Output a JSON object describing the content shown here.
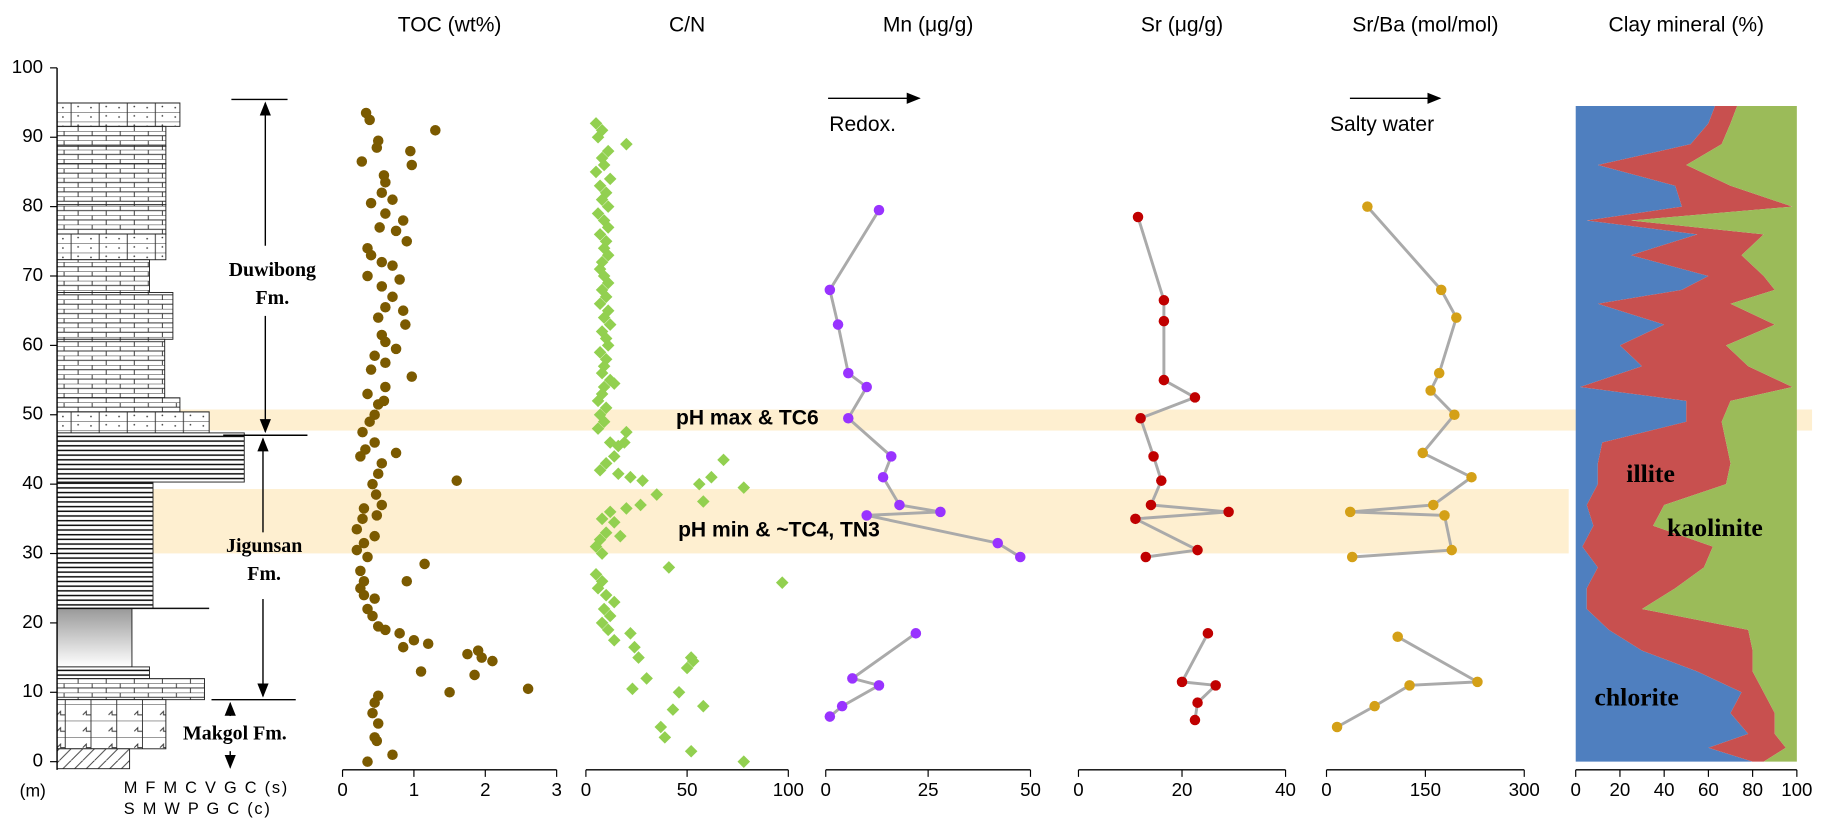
{
  "depth_axis": {
    "label": "(m)",
    "ylim": [
      0,
      100
    ],
    "yticks": [
      0,
      10,
      20,
      30,
      40,
      50,
      60,
      70,
      80,
      90,
      100
    ]
  },
  "lithology_scale": [
    "M F M C V G C (s)",
    "S M W P G C (c)"
  ],
  "formations": [
    {
      "lines": [
        "Duwibong",
        "Fm."
      ]
    },
    {
      "lines": [
        "Jigunsan",
        "Fm."
      ]
    },
    {
      "lines": [
        "Makgol Fm."
      ]
    }
  ],
  "highlight_bands": [
    {
      "label": "pH max & TC6"
    },
    {
      "label": "pH min & ~TC4, TN3"
    }
  ],
  "chart_data": [
    {
      "type": "scatter",
      "title": "TOC (wt%)",
      "marker": "circle",
      "color": "#7b5a00",
      "xlim": [
        0,
        3
      ],
      "xticks": [
        0,
        1,
        2,
        3
      ],
      "values": [
        0.33,
        0.38,
        1.3,
        0.5,
        0.48,
        0.95,
        0.27,
        0.97,
        0.58,
        0.6,
        0.55,
        0.4,
        0.7,
        0.6,
        0.85,
        0.52,
        0.75,
        0.9,
        0.35,
        0.4,
        0.55,
        0.7,
        0.35,
        0.8,
        0.55,
        0.7,
        0.6,
        0.85,
        0.5,
        0.88,
        0.55,
        0.6,
        0.75,
        0.45,
        0.6,
        0.4,
        0.97,
        0.6,
        0.35,
        0.5,
        0.58,
        0.45,
        0.38,
        0.28,
        0.45,
        0.32,
        0.75,
        0.25,
        0.55,
        0.5,
        1.6,
        0.42,
        0.47,
        0.55,
        0.3,
        0.48,
        0.28,
        0.2,
        0.45,
        0.3,
        0.2,
        0.35,
        1.15,
        0.25,
        0.3,
        0.9,
        0.25,
        0.3,
        0.45,
        0.35,
        0.42,
        0.5,
        0.6,
        0.8,
        1.0,
        0.85,
        1.2,
        1.75,
        1.9,
        1.95,
        2.1,
        1.1,
        1.85,
        2.6,
        1.5,
        0.5,
        0.45,
        0.42,
        0.5,
        0.45,
        0.48,
        0.7,
        0.35
      ],
      "depth": [
        93.5,
        92.5,
        91,
        89.5,
        88.5,
        88,
        86.5,
        86,
        84.5,
        83.5,
        82,
        80.5,
        81,
        79,
        78,
        77,
        76.5,
        75,
        74,
        73,
        72,
        71.5,
        70,
        69.5,
        68.5,
        67,
        65.5,
        65,
        64,
        63,
        61.5,
        60.5,
        59.5,
        58.5,
        57.5,
        56.5,
        55.5,
        54,
        53,
        51.5,
        52,
        50,
        49,
        47.5,
        46,
        45,
        44.5,
        44,
        43,
        41.5,
        40.5,
        40,
        38.5,
        37,
        36.5,
        35.5,
        35,
        33.5,
        32.5,
        31.5,
        30.5,
        29.5,
        28.5,
        27.5,
        26,
        26,
        25,
        24,
        23.5,
        22,
        21,
        19.5,
        19,
        18.5,
        17.5,
        16.5,
        17,
        15.5,
        16,
        15,
        14.5,
        13,
        12.5,
        10.5,
        10,
        9.5,
        8.5,
        7,
        5.5,
        3.5,
        3,
        1,
        0
      ]
    },
    {
      "type": "scatter",
      "title": "C/N",
      "marker": "diamond",
      "color": "#92d050",
      "xlim": [
        0,
        100
      ],
      "xticks": [
        0,
        50,
        100
      ],
      "values": [
        5,
        8,
        6,
        20,
        11,
        8,
        9,
        5,
        12,
        7,
        10,
        8,
        11,
        6,
        9,
        11,
        7,
        10,
        9,
        11,
        8,
        7,
        9,
        11,
        8,
        10,
        7,
        11,
        9,
        12,
        8,
        10,
        11,
        7,
        10,
        9,
        8,
        12,
        9,
        14,
        8,
        6,
        10,
        7,
        9,
        6,
        20,
        12,
        16,
        19,
        14,
        10,
        7,
        16,
        28,
        22,
        78,
        56,
        68,
        62,
        35,
        58,
        27,
        20,
        12,
        8,
        14,
        10,
        7,
        17,
        5,
        8,
        41,
        97,
        5,
        8,
        6,
        10,
        14,
        9,
        12,
        8,
        11,
        22,
        14,
        24,
        26,
        52,
        50,
        53,
        30,
        23,
        46,
        58,
        43,
        37,
        39,
        52,
        78
      ],
      "depth": [
        92,
        91,
        90,
        89,
        88,
        87,
        86,
        85,
        84,
        83,
        82,
        81,
        80,
        79,
        78,
        77,
        76,
        75,
        74,
        73,
        72,
        71,
        70,
        69,
        68,
        67,
        66,
        65,
        64,
        63,
        62,
        61,
        60,
        59,
        58,
        57,
        56,
        55,
        54,
        54.5,
        53,
        52,
        51,
        50,
        49,
        48,
        47.5,
        46,
        45.5,
        46,
        44,
        43,
        42,
        41.5,
        40.5,
        41,
        39.5,
        40,
        43.5,
        41,
        38.5,
        37.5,
        37,
        36.5,
        36,
        35,
        34.5,
        33,
        32,
        32.5,
        31,
        30,
        28,
        25.8,
        27,
        26,
        25,
        24,
        23,
        22,
        21,
        20,
        19,
        18.5,
        17.5,
        16.5,
        15,
        15,
        13.5,
        14.5,
        12,
        10.5,
        10,
        8,
        7.5,
        5,
        3.5,
        1.5,
        0
      ]
    },
    {
      "type": "line",
      "title": "Mn (μg/g)",
      "annotation": "Redox.",
      "color": "#9933ff",
      "line_color": "#aaaaaa",
      "xlim": [
        0,
        50
      ],
      "xticks": [
        0,
        25,
        50
      ],
      "values": [
        13,
        1,
        3,
        5.5,
        10,
        5.5,
        16,
        14,
        18,
        28,
        10,
        42,
        47.5,
        null,
        22,
        6.5,
        13,
        4,
        1
      ],
      "depth": [
        79.5,
        68,
        63,
        56,
        54,
        49.5,
        44,
        41,
        37,
        36,
        35.5,
        31.5,
        29.5,
        null,
        18.5,
        12,
        11,
        8,
        6.5
      ]
    },
    {
      "type": "line",
      "title": "Sr (μg/g)",
      "color": "#c00000",
      "line_color": "#aaaaaa",
      "xlim": [
        0,
        40
      ],
      "xticks": [
        0,
        20,
        40
      ],
      "values": [
        11.5,
        16.5,
        16.5,
        16.5,
        22.5,
        12,
        14.5,
        16,
        14,
        29,
        11,
        23,
        13,
        null,
        25,
        20,
        26.5,
        23,
        22.5
      ],
      "depth": [
        78.5,
        66.5,
        63.5,
        55,
        52.5,
        49.5,
        44,
        40.5,
        37,
        36,
        35,
        30.5,
        29.5,
        null,
        18.5,
        11.5,
        11,
        8.5,
        6
      ]
    },
    {
      "type": "line",
      "title": "Sr/Ba (mol/mol)",
      "annotation": "Salty water",
      "color": "#d4a017",
      "line_color": "#aaaaaa",
      "xlim": [
        0,
        300
      ],
      "xticks": [
        0,
        150,
        300
      ],
      "values": [
        62,
        174,
        197,
        171,
        158,
        194,
        146,
        220,
        162,
        36,
        179,
        190,
        39,
        null,
        108,
        229,
        126,
        73,
        16
      ],
      "depth": [
        80,
        68,
        64,
        56,
        53.5,
        50,
        44.5,
        41,
        37,
        36,
        35.5,
        30.5,
        29.5,
        null,
        18,
        11.5,
        11,
        8,
        5
      ]
    },
    {
      "type": "area",
      "title": "Clay mineral (%)",
      "xlim": [
        0,
        100
      ],
      "xticks": [
        0,
        20,
        40,
        60,
        80,
        100
      ],
      "depth": [
        94.5,
        92,
        89,
        86,
        83,
        80,
        78,
        76,
        73,
        70,
        68,
        66,
        63,
        60,
        57,
        54,
        52,
        49,
        46,
        43,
        40,
        37,
        34,
        31,
        28,
        25,
        22,
        19,
        16,
        13,
        10,
        7,
        4,
        2,
        0
      ],
      "series": [
        {
          "name": "illite",
          "color": "#4f7fbf",
          "values": [
            63,
            60,
            52,
            10,
            45,
            48,
            5,
            55,
            25,
            60,
            48,
            10,
            40,
            20,
            30,
            2,
            50,
            50,
            12,
            10,
            10,
            5,
            8,
            3,
            10,
            5,
            5,
            15,
            30,
            55,
            75,
            70,
            78,
            60,
            80
          ]
        },
        {
          "name": "chlorite",
          "color": "#c8504f",
          "values": [
            10,
            10,
            14,
            40,
            25,
            50,
            20,
            30,
            50,
            25,
            42,
            60,
            50,
            48,
            48,
            96,
            20,
            16,
            56,
            60,
            58,
            35,
            27,
            59,
            48,
            40,
            25,
            63,
            50,
            25,
            10,
            20,
            12,
            35,
            5
          ]
        },
        {
          "name": "kaolinite",
          "color": "#9bbb59",
          "values": [
            27,
            30,
            34,
            50,
            30,
            2,
            75,
            15,
            25,
            15,
            10,
            30,
            10,
            32,
            22,
            2,
            30,
            34,
            32,
            30,
            32,
            60,
            65,
            38,
            42,
            55,
            70,
            22,
            20,
            20,
            15,
            10,
            10,
            5,
            15
          ]
        }
      ]
    }
  ]
}
